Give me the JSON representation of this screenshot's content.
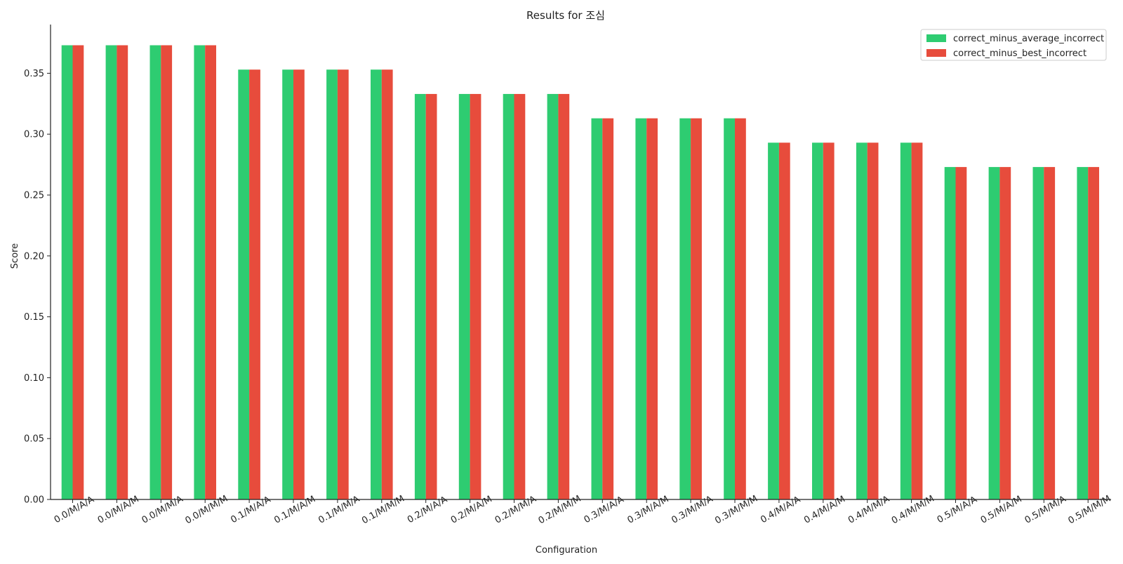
{
  "chart_data": {
    "type": "bar",
    "title": "Results for 조심",
    "xlabel": "Configuration",
    "ylabel": "Score",
    "ylim": [
      0,
      0.39
    ],
    "yticks": [
      0.0,
      0.05,
      0.1,
      0.15,
      0.2,
      0.25,
      0.3,
      0.35
    ],
    "ytick_labels": [
      "0.00",
      "0.05",
      "0.10",
      "0.15",
      "0.20",
      "0.25",
      "0.30",
      "0.35"
    ],
    "grid": false,
    "legend_position": "top-right",
    "categories": [
      "0.0/M/A/A",
      "0.0/M/A/M",
      "0.0/M/M/A",
      "0.0/M/M/M",
      "0.1/M/A/A",
      "0.1/M/A/M",
      "0.1/M/M/A",
      "0.1/M/M/M",
      "0.2/M/A/A",
      "0.2/M/A/M",
      "0.2/M/M/A",
      "0.2/M/M/M",
      "0.3/M/A/A",
      "0.3/M/A/M",
      "0.3/M/M/A",
      "0.3/M/M/M",
      "0.4/M/A/A",
      "0.4/M/A/M",
      "0.4/M/M/A",
      "0.4/M/M/M",
      "0.5/M/A/A",
      "0.5/M/A/M",
      "0.5/M/M/A",
      "0.5/M/M/M"
    ],
    "series": [
      {
        "name": "correct_minus_average_incorrect",
        "color": "#2ecc71",
        "values": [
          0.373,
          0.373,
          0.373,
          0.373,
          0.353,
          0.353,
          0.353,
          0.353,
          0.333,
          0.333,
          0.333,
          0.333,
          0.313,
          0.313,
          0.313,
          0.313,
          0.293,
          0.293,
          0.293,
          0.293,
          0.273,
          0.273,
          0.273,
          0.273
        ]
      },
      {
        "name": "correct_minus_best_incorrect",
        "color": "#e74c3c",
        "values": [
          0.373,
          0.373,
          0.373,
          0.373,
          0.353,
          0.353,
          0.353,
          0.353,
          0.333,
          0.333,
          0.333,
          0.333,
          0.313,
          0.313,
          0.313,
          0.313,
          0.293,
          0.293,
          0.293,
          0.293,
          0.273,
          0.273,
          0.273,
          0.273
        ]
      }
    ]
  }
}
